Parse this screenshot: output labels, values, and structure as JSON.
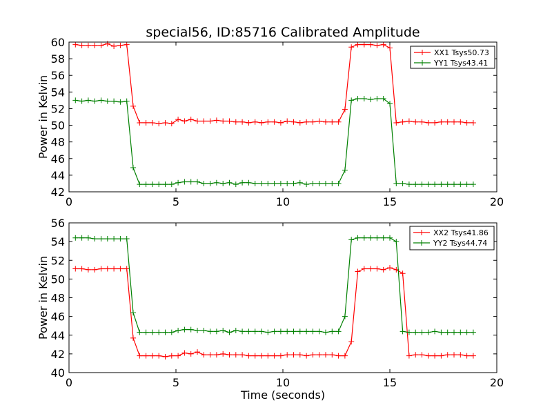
{
  "figure": {
    "title": "special56, ID:85716 Calibrated Amplitude"
  },
  "chart_data": [
    {
      "type": "line",
      "title": "special56, ID:85716 Calibrated Amplitude",
      "xlabel": "",
      "ylabel": "Power in Kelvin",
      "xlim": [
        0,
        20
      ],
      "ylim": [
        42,
        60
      ],
      "xticks": [
        "0",
        "5",
        "10",
        "15",
        "20"
      ],
      "yticks": [
        "42",
        "44",
        "46",
        "48",
        "50",
        "52",
        "54",
        "56",
        "58",
        "60"
      ],
      "legend_position": "top-right",
      "x": [
        0.3,
        0.6,
        0.9,
        1.2,
        1.5,
        1.8,
        2.1,
        2.4,
        2.7,
        3.0,
        3.3,
        3.6,
        3.9,
        4.2,
        4.5,
        4.8,
        5.1,
        5.4,
        5.7,
        6.0,
        6.3,
        6.6,
        6.9,
        7.2,
        7.5,
        7.8,
        8.1,
        8.4,
        8.7,
        9.0,
        9.3,
        9.6,
        9.9,
        10.2,
        10.5,
        10.8,
        11.1,
        11.4,
        11.7,
        12.0,
        12.3,
        12.6,
        12.9,
        13.2,
        13.5,
        13.8,
        14.1,
        14.4,
        14.7,
        15.0,
        15.3,
        15.6,
        15.9,
        16.2,
        16.5,
        16.8,
        17.1,
        17.4,
        17.7,
        18.0,
        18.3,
        18.6,
        18.9
      ],
      "series": [
        {
          "name": "XX1 Tsys50.73",
          "color": "#ff0000",
          "values": [
            59.7,
            59.6,
            59.6,
            59.6,
            59.6,
            59.8,
            59.5,
            59.6,
            59.7,
            52.3,
            50.3,
            50.3,
            50.3,
            50.2,
            50.3,
            50.2,
            50.7,
            50.5,
            50.7,
            50.5,
            50.5,
            50.5,
            50.6,
            50.5,
            50.5,
            50.4,
            50.4,
            50.3,
            50.4,
            50.3,
            50.4,
            50.4,
            50.3,
            50.5,
            50.4,
            50.3,
            50.4,
            50.4,
            50.5,
            50.4,
            50.4,
            50.4,
            51.9,
            59.4,
            59.7,
            59.7,
            59.7,
            59.6,
            59.7,
            59.3,
            50.3,
            50.4,
            50.5,
            50.4,
            50.4,
            50.3,
            50.3,
            50.4,
            50.4,
            50.4,
            50.4,
            50.3,
            50.3
          ]
        },
        {
          "name": "YY1 Tsys43.41",
          "color": "#008000",
          "values": [
            53.0,
            52.9,
            53.0,
            52.9,
            53.0,
            52.9,
            52.9,
            52.8,
            52.9,
            44.9,
            42.9,
            42.9,
            42.9,
            42.9,
            42.9,
            42.9,
            43.1,
            43.2,
            43.2,
            43.2,
            43.0,
            43.0,
            43.1,
            43.0,
            43.1,
            42.9,
            43.1,
            43.1,
            43.0,
            43.0,
            43.0,
            43.0,
            43.0,
            43.0,
            43.0,
            43.1,
            42.9,
            43.0,
            43.0,
            43.0,
            43.0,
            43.0,
            44.6,
            53.0,
            53.2,
            53.2,
            53.1,
            53.2,
            53.2,
            52.6,
            43.0,
            43.0,
            42.9,
            42.9,
            42.9,
            42.9,
            42.9,
            42.9,
            42.9,
            42.9,
            42.9,
            42.9,
            42.9
          ]
        }
      ]
    },
    {
      "type": "line",
      "title": "",
      "xlabel": "Time (seconds)",
      "ylabel": "Power in Kelvin",
      "xlim": [
        0,
        20
      ],
      "ylim": [
        40,
        56
      ],
      "xticks": [
        "0",
        "5",
        "10",
        "15",
        "20"
      ],
      "yticks": [
        "40",
        "42",
        "44",
        "46",
        "48",
        "50",
        "52",
        "54",
        "56"
      ],
      "legend_position": "top-right",
      "x": [
        0.3,
        0.6,
        0.9,
        1.2,
        1.5,
        1.8,
        2.1,
        2.4,
        2.7,
        3.0,
        3.3,
        3.6,
        3.9,
        4.2,
        4.5,
        4.8,
        5.1,
        5.4,
        5.7,
        6.0,
        6.3,
        6.6,
        6.9,
        7.2,
        7.5,
        7.8,
        8.1,
        8.4,
        8.7,
        9.0,
        9.3,
        9.6,
        9.9,
        10.2,
        10.5,
        10.8,
        11.1,
        11.4,
        11.7,
        12.0,
        12.3,
        12.6,
        12.9,
        13.2,
        13.5,
        13.8,
        14.1,
        14.4,
        14.7,
        15.0,
        15.3,
        15.6,
        15.9,
        16.2,
        16.5,
        16.8,
        17.1,
        17.4,
        17.7,
        18.0,
        18.3,
        18.6,
        18.9
      ],
      "series": [
        {
          "name": "XX2 Tsys41.86",
          "color": "#ff0000",
          "values": [
            51.1,
            51.1,
            51.0,
            51.0,
            51.1,
            51.1,
            51.1,
            51.1,
            51.1,
            43.7,
            41.8,
            41.8,
            41.8,
            41.8,
            41.7,
            41.8,
            41.8,
            42.1,
            42.0,
            42.2,
            41.9,
            41.9,
            41.9,
            42.0,
            41.9,
            41.9,
            41.9,
            41.8,
            41.8,
            41.8,
            41.8,
            41.8,
            41.8,
            41.9,
            41.9,
            41.9,
            41.8,
            41.9,
            41.9,
            41.9,
            41.9,
            41.8,
            41.8,
            43.3,
            50.8,
            51.1,
            51.1,
            51.1,
            51.0,
            51.2,
            51.0,
            50.6,
            41.8,
            41.9,
            41.9,
            41.8,
            41.8,
            41.8,
            41.9,
            41.9,
            41.9,
            41.8,
            41.8
          ]
        },
        {
          "name": "YY2 Tsys44.74",
          "color": "#008000",
          "values": [
            54.4,
            54.4,
            54.4,
            54.3,
            54.3,
            54.3,
            54.3,
            54.3,
            54.3,
            46.4,
            44.3,
            44.3,
            44.3,
            44.3,
            44.3,
            44.3,
            44.5,
            44.6,
            44.6,
            44.5,
            44.5,
            44.4,
            44.4,
            44.5,
            44.3,
            44.5,
            44.4,
            44.4,
            44.4,
            44.4,
            44.3,
            44.4,
            44.4,
            44.4,
            44.4,
            44.4,
            44.4,
            44.4,
            44.4,
            44.3,
            44.4,
            44.4,
            46.0,
            54.2,
            54.4,
            54.4,
            54.4,
            54.4,
            54.4,
            54.4,
            54.0,
            44.4,
            44.3,
            44.3,
            44.3,
            44.3,
            44.4,
            44.3,
            44.3,
            44.3,
            44.3,
            44.3,
            44.3
          ]
        }
      ]
    }
  ]
}
